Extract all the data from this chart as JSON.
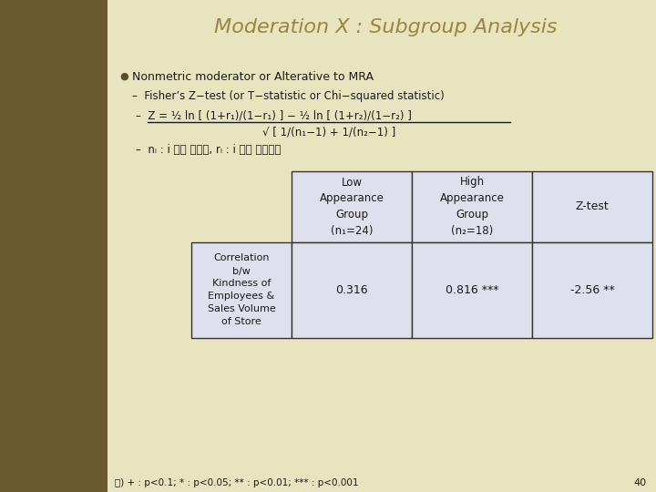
{
  "title": "Moderation X : Subgroup Analysis",
  "title_color": "#9B8640",
  "title_fontsize": 16,
  "bg_color": "#E8E4C0",
  "left_bar_color": "#6B5A30",
  "bullet_color": "#5A5020",
  "text_color": "#1A1A1A",
  "table_cell_color": "#DFE0EE",
  "table_border_color": "#333333",
  "bullet_text": "Nonmetric moderator or Alterative to MRA",
  "sub1": "Fisher’s Z−test (or T−statistic or Chi−squared statistic)",
  "sub2_num": "Z = ½ ln [ (1+r₁)/(1−r₁) ] − ½ ln [ (1+r₂)/(1−r₂) ]",
  "sub2_den": "√ [ 1/(n₁−1) + 1/(n₂−1) ]",
  "sub3": "nᵢ : i 그룹 표본수, rᵢ : i 그룹 상관계수",
  "col_header1": "Low\nAppearance\nGroup\n(n₁=24)",
  "col_header2": "High\nAppearance\nGroup\n(n₂=18)",
  "col_header3": "Z-test",
  "row_header": "Correlation\nb/w\nKindness of\nEmployees &\nSales Volume\nof Store",
  "val1": "0.316",
  "val2": "0.816 ***",
  "val3": "-2.56 **",
  "footnote": "주) + : p<0.1; * : p<0.05; ** : p<0.01; *** : p<0.001",
  "page_num": "40",
  "left_bar_width": 118,
  "fig_w": 7.2,
  "fig_h": 5.4,
  "dpi": 100
}
